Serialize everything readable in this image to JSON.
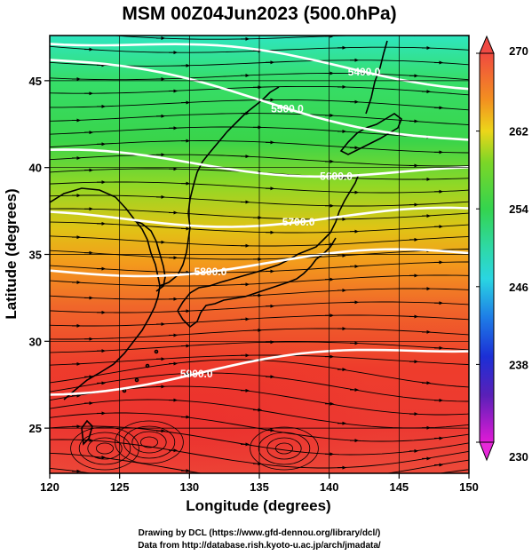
{
  "title": "MSM 00Z04Jun2023 (500.0hPa)",
  "xaxis": {
    "label": "Longitude (degrees)",
    "ticks": [
      120,
      125,
      130,
      135,
      140,
      145,
      150
    ],
    "range": [
      120,
      150
    ]
  },
  "yaxis": {
    "label": "Latitude  (degrees)",
    "ticks": [
      25,
      30,
      35,
      40,
      45
    ],
    "range": [
      22.4,
      47.6
    ]
  },
  "colorbar": {
    "ticks": [
      270,
      262,
      254,
      246,
      238,
      230
    ],
    "range": [
      230,
      270
    ]
  },
  "contours": [
    {
      "label": "5500.0",
      "lat_west": 46.2,
      "lat_east": 41.6,
      "label_lon": 137.0
    },
    {
      "label": "5600.0",
      "lat_west": 40.6,
      "lat_east": 39.6,
      "label_lon": 140.5
    },
    {
      "label": "5700.0",
      "lat_west": 37.0,
      "lat_east": 37.2,
      "label_lon": 137.8
    },
    {
      "label": "5800.0",
      "lat_west": 34.0,
      "lat_east": 35.0,
      "label_lon": 131.5
    },
    {
      "label": "5900.0",
      "lat_west": 27.3,
      "lat_east": 29.8,
      "label_lon": 130.5
    },
    {
      "label": "5400.0",
      "lat_west": 47.6,
      "lat_east": 45.0,
      "label_lon": 142.5
    }
  ],
  "credits": {
    "line1": "Drawing by DCL (https://www.gfd-dennou.org/library/dcl/)",
    "line2": "Data from http://database.rish.kyoto-u.ac.jp/arch/jmadata/"
  }
}
